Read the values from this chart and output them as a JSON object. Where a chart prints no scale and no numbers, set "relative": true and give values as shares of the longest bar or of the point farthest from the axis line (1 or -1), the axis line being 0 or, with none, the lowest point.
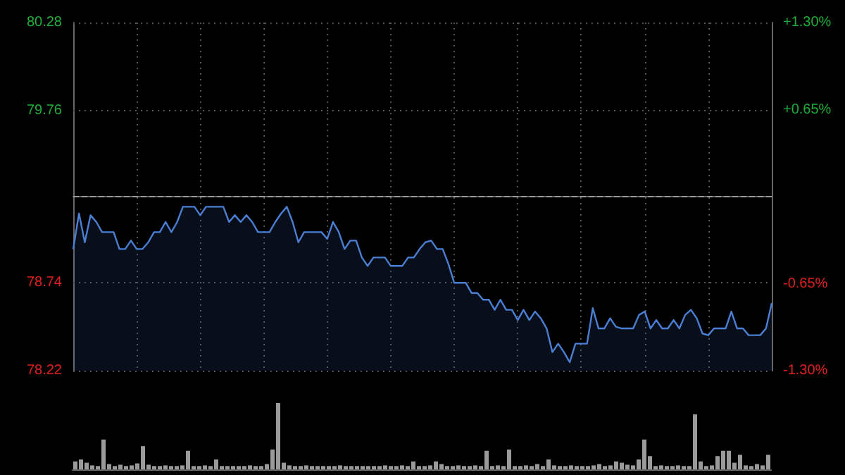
{
  "chart_data": [
    {
      "type": "area",
      "color": "#4a7fd4",
      "categories": [
        null,
        null,
        null,
        null,
        null,
        null,
        null,
        null,
        null,
        null,
        null,
        null,
        null,
        null,
        null,
        null,
        null,
        null,
        null,
        null,
        null,
        null,
        null,
        null,
        null,
        null,
        null,
        null,
        null,
        null,
        null,
        null,
        null,
        null,
        null,
        null,
        null,
        null,
        null,
        null,
        null,
        null,
        null,
        null,
        null,
        null,
        null,
        null,
        null,
        null,
        null,
        null,
        null,
        null,
        null,
        null,
        null,
        null,
        null,
        null,
        null,
        null,
        null,
        null,
        null,
        null,
        null,
        null,
        null,
        null,
        null,
        null,
        null,
        null,
        null,
        null,
        null,
        null,
        null,
        null,
        null,
        null,
        null,
        null,
        null,
        null,
        null,
        null,
        null,
        null,
        null,
        null,
        null,
        null,
        null,
        null,
        null,
        null,
        null,
        null,
        null,
        null,
        null,
        null,
        null,
        null,
        null,
        null,
        null,
        null,
        null,
        null,
        null,
        null,
        null,
        null,
        null,
        null,
        null,
        null,
        null,
        null
      ],
      "values": [
        78.94,
        79.15,
        78.98,
        79.14,
        79.1,
        79.04,
        79.04,
        79.04,
        78.94,
        78.94,
        78.99,
        78.94,
        78.94,
        78.98,
        79.04,
        79.04,
        79.1,
        79.04,
        79.1,
        79.19,
        79.19,
        79.19,
        79.14,
        79.19,
        79.19,
        79.19,
        79.19,
        79.1,
        79.14,
        79.1,
        79.14,
        79.1,
        79.04,
        79.04,
        79.04,
        79.1,
        79.15,
        79.19,
        79.1,
        78.98,
        79.04,
        79.04,
        79.04,
        79.04,
        79.0,
        79.1,
        79.04,
        78.94,
        78.99,
        78.99,
        78.89,
        78.84,
        78.89,
        78.89,
        78.89,
        78.84,
        78.84,
        78.84,
        78.89,
        78.89,
        78.94,
        78.98,
        78.99,
        78.94,
        78.94,
        78.85,
        78.74,
        78.74,
        78.74,
        78.68,
        78.68,
        78.64,
        78.64,
        78.58,
        78.64,
        78.58,
        78.58,
        78.52,
        78.58,
        78.52,
        78.57,
        78.53,
        78.47,
        78.33,
        78.38,
        78.33,
        78.27,
        78.38,
        78.38,
        78.38,
        78.59,
        78.47,
        78.47,
        78.53,
        78.48,
        78.47,
        78.47,
        78.47,
        78.55,
        78.57,
        78.47,
        78.52,
        78.47,
        78.47,
        78.52,
        78.47,
        78.55,
        78.58,
        78.53,
        78.44,
        78.43,
        78.47,
        78.47,
        78.47,
        78.57,
        78.47,
        78.47,
        78.43,
        78.43,
        78.43,
        78.47,
        78.62
      ],
      "ylim": [
        78.22,
        80.28
      ],
      "yticks": [
        78.22,
        78.74,
        79.76,
        80.28
      ],
      "y2lim": [
        -1.3,
        1.3
      ],
      "y2ticks": [
        {
          "value": -1.3,
          "label": "-1.30%"
        },
        {
          "value": -0.65,
          "label": "-0.65%"
        },
        {
          "value": 0.65,
          "label": "+0.65%"
        },
        {
          "value": 1.3,
          "label": "+1.30%"
        }
      ],
      "ref_lines": [
        {
          "axis": "y",
          "value": 79.25,
          "line_style": "dashed",
          "color": "#9a9a9a"
        }
      ],
      "grid": true
    },
    {
      "type": "bar",
      "relative": true,
      "color": "#9a9a9a",
      "categories": [
        null,
        null,
        null,
        null,
        null,
        null,
        null,
        null,
        null,
        null,
        null,
        null,
        null,
        null,
        null,
        null,
        null,
        null,
        null,
        null,
        null,
        null,
        null,
        null,
        null,
        null,
        null,
        null,
        null,
        null,
        null,
        null,
        null,
        null,
        null,
        null,
        null,
        null,
        null,
        null,
        null,
        null,
        null,
        null,
        null,
        null,
        null,
        null,
        null,
        null,
        null,
        null,
        null,
        null,
        null,
        null,
        null,
        null,
        null,
        null,
        null,
        null,
        null,
        null,
        null,
        null,
        null,
        null,
        null,
        null,
        null,
        null,
        null,
        null,
        null,
        null,
        null,
        null,
        null,
        null,
        null,
        null,
        null,
        null,
        null,
        null,
        null,
        null,
        null,
        null,
        null,
        null,
        null,
        null,
        null,
        null,
        null,
        null,
        null,
        null,
        null,
        null,
        null,
        null,
        null,
        null,
        null,
        null,
        null,
        null,
        null,
        null,
        null,
        null,
        null,
        null,
        null,
        null,
        null,
        null,
        null,
        null,
        null,
        null
      ],
      "values": [
        0.12,
        0.15,
        0.1,
        0.06,
        0.05,
        0.45,
        0.08,
        0.05,
        0.07,
        0.05,
        0.06,
        0.09,
        0.35,
        0.07,
        0.05,
        0.05,
        0.06,
        0.05,
        0.05,
        0.06,
        0.28,
        0.05,
        0.05,
        0.06,
        0.05,
        0.15,
        0.05,
        0.05,
        0.05,
        0.05,
        0.05,
        0.06,
        0.05,
        0.05,
        0.08,
        0.3,
        1.0,
        0.1,
        0.06,
        0.05,
        0.05,
        0.06,
        0.05,
        0.05,
        0.05,
        0.05,
        0.05,
        0.06,
        0.05,
        0.05,
        0.05,
        0.05,
        0.05,
        0.05,
        0.05,
        0.06,
        0.05,
        0.05,
        0.06,
        0.05,
        0.12,
        0.05,
        0.05,
        0.06,
        0.12,
        0.08,
        0.05,
        0.05,
        0.06,
        0.05,
        0.05,
        0.06,
        0.05,
        0.28,
        0.05,
        0.06,
        0.05,
        0.3,
        0.05,
        0.05,
        0.06,
        0.05,
        0.08,
        0.05,
        0.15,
        0.06,
        0.05,
        0.05,
        0.06,
        0.05,
        0.05,
        0.05,
        0.06,
        0.08,
        0.05,
        0.06,
        0.12,
        0.1,
        0.07,
        0.06,
        0.15,
        0.45,
        0.2,
        0.05,
        0.06,
        0.05,
        0.05,
        0.06,
        0.05,
        0.05,
        0.83,
        0.12,
        0.05,
        0.06,
        0.2,
        0.28,
        0.28,
        0.1,
        0.22,
        0.06,
        0.05,
        0.08,
        0.06,
        0.22
      ]
    }
  ]
}
